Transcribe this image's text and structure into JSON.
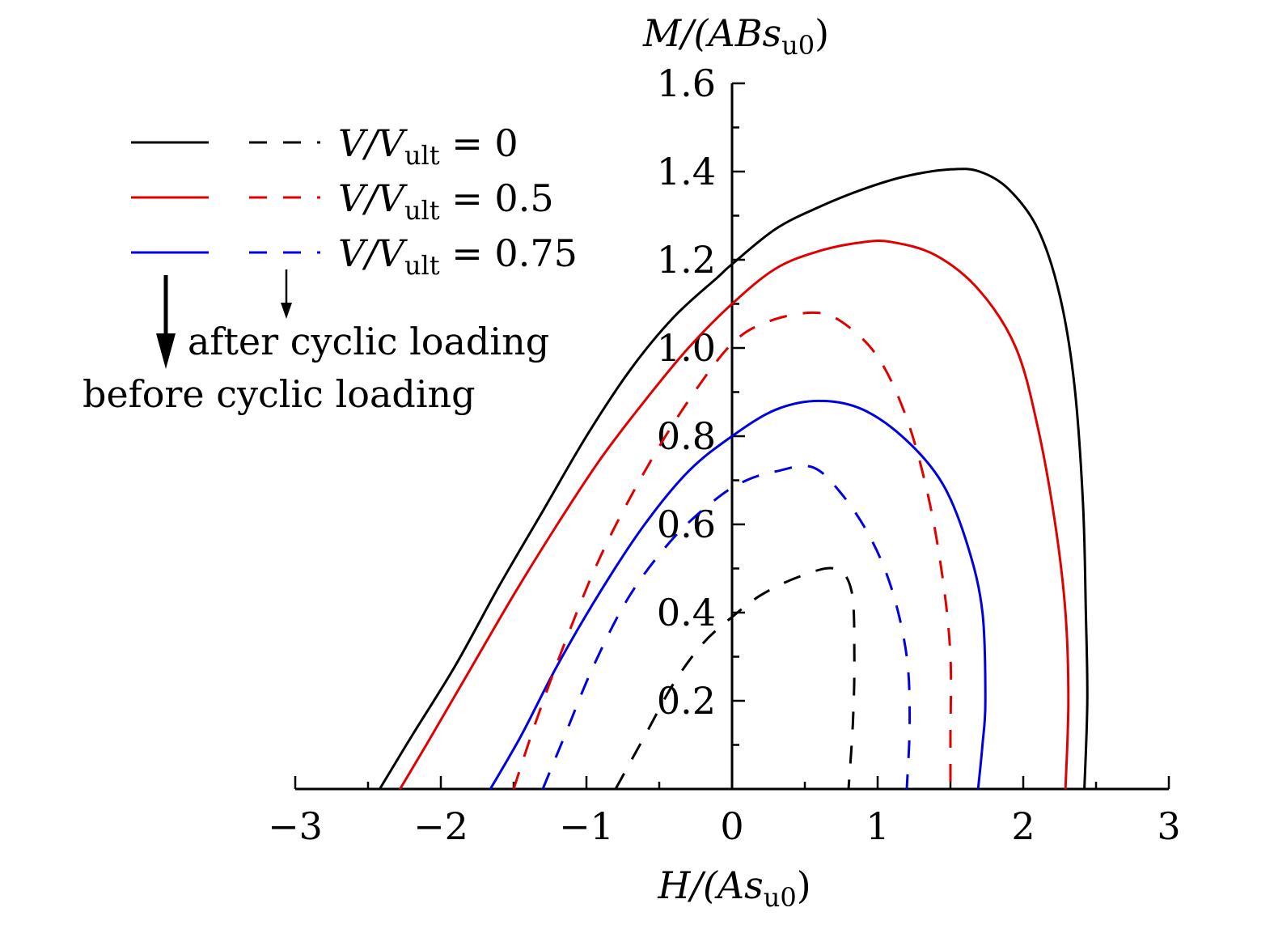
{
  "chart_data": {
    "type": "line",
    "xlabel": {
      "main": "H/(As",
      "sub": "u0",
      "end": ")"
    },
    "ylabel": {
      "main": "M/(ABs",
      "sub": "u0",
      "end": ")"
    },
    "xlim": [
      -3,
      3
    ],
    "ylim": [
      0,
      1.6
    ],
    "x_ticks": [
      "−3",
      "−2",
      "−1",
      "0",
      "1",
      "2",
      "3"
    ],
    "y_ticks": [
      "0.2",
      "0.4",
      "0.6",
      "0.8",
      "1.0",
      "1.2",
      "1.4",
      "1.6"
    ],
    "legend": {
      "placement": "top-left",
      "entries": [
        {
          "prefix": "V/V",
          "sub": "ult",
          "value": " = 0",
          "color": "#000000"
        },
        {
          "prefix": "V/V",
          "sub": "ult",
          "value": " = 0.5",
          "color": "#e00000"
        },
        {
          "prefix": "V/V",
          "sub": "ult",
          "value": " = 0.75",
          "color": "#0000e0"
        }
      ]
    },
    "annotations": {
      "after": "after cyclic loading",
      "before": "before cyclic loading"
    },
    "series": [
      {
        "legend_index": 0,
        "style": "solid",
        "color": "#000000",
        "points": [
          [
            -2.42,
            0
          ],
          [
            -2.2,
            0.12
          ],
          [
            -1.9,
            0.28
          ],
          [
            -1.6,
            0.46
          ],
          [
            -1.3,
            0.63
          ],
          [
            -1.0,
            0.8
          ],
          [
            -0.7,
            0.95
          ],
          [
            -0.4,
            1.07
          ],
          [
            -0.1,
            1.16
          ],
          [
            0,
            1.19
          ],
          [
            0.3,
            1.27
          ],
          [
            0.6,
            1.32
          ],
          [
            0.9,
            1.36
          ],
          [
            1.2,
            1.39
          ],
          [
            1.5,
            1.405
          ],
          [
            1.7,
            1.4
          ],
          [
            1.9,
            1.36
          ],
          [
            2.1,
            1.27
          ],
          [
            2.25,
            1.12
          ],
          [
            2.35,
            0.92
          ],
          [
            2.41,
            0.65
          ],
          [
            2.43,
            0.4
          ],
          [
            2.44,
            0.2
          ],
          [
            2.42,
            0
          ]
        ]
      },
      {
        "legend_index": 1,
        "style": "solid",
        "color": "#e00000",
        "points": [
          [
            -2.28,
            0
          ],
          [
            -2.1,
            0.1
          ],
          [
            -1.8,
            0.27
          ],
          [
            -1.5,
            0.44
          ],
          [
            -1.2,
            0.6
          ],
          [
            -0.9,
            0.75
          ],
          [
            -0.6,
            0.88
          ],
          [
            -0.3,
            1.0
          ],
          [
            0,
            1.1
          ],
          [
            0.3,
            1.18
          ],
          [
            0.6,
            1.22
          ],
          [
            0.9,
            1.24
          ],
          [
            1.1,
            1.24
          ],
          [
            1.4,
            1.21
          ],
          [
            1.7,
            1.13
          ],
          [
            1.95,
            1.0
          ],
          [
            2.1,
            0.82
          ],
          [
            2.22,
            0.6
          ],
          [
            2.29,
            0.4
          ],
          [
            2.31,
            0.2
          ],
          [
            2.29,
            0
          ]
        ]
      },
      {
        "legend_index": 2,
        "style": "solid",
        "color": "#0000e0",
        "points": [
          [
            -1.66,
            0
          ],
          [
            -1.45,
            0.12
          ],
          [
            -1.2,
            0.28
          ],
          [
            -0.9,
            0.45
          ],
          [
            -0.6,
            0.6
          ],
          [
            -0.3,
            0.72
          ],
          [
            0,
            0.8
          ],
          [
            0.3,
            0.86
          ],
          [
            0.6,
            0.88
          ],
          [
            0.9,
            0.86
          ],
          [
            1.2,
            0.79
          ],
          [
            1.45,
            0.69
          ],
          [
            1.62,
            0.55
          ],
          [
            1.72,
            0.4
          ],
          [
            1.74,
            0.2
          ],
          [
            1.72,
            0.1
          ],
          [
            1.69,
            0
          ]
        ]
      },
      {
        "legend_index": 0,
        "style": "dashed",
        "color": "#000000",
        "points": [
          [
            -0.8,
            0
          ],
          [
            -0.6,
            0.12
          ],
          [
            -0.4,
            0.24
          ],
          [
            -0.2,
            0.33
          ],
          [
            0,
            0.39
          ],
          [
            0.2,
            0.44
          ],
          [
            0.45,
            0.48
          ],
          [
            0.7,
            0.5
          ],
          [
            0.82,
            0.45
          ],
          [
            0.84,
            0.3
          ],
          [
            0.83,
            0.15
          ],
          [
            0.8,
            0
          ]
        ]
      },
      {
        "legend_index": 1,
        "style": "dashed",
        "color": "#e00000",
        "points": [
          [
            -1.5,
            0
          ],
          [
            -1.35,
            0.15
          ],
          [
            -1.15,
            0.33
          ],
          [
            -0.9,
            0.53
          ],
          [
            -0.6,
            0.72
          ],
          [
            -0.3,
            0.88
          ],
          [
            0,
            1.01
          ],
          [
            0.25,
            1.06
          ],
          [
            0.55,
            1.08
          ],
          [
            0.75,
            1.06
          ],
          [
            1.0,
            0.98
          ],
          [
            1.2,
            0.84
          ],
          [
            1.35,
            0.66
          ],
          [
            1.45,
            0.47
          ],
          [
            1.5,
            0.3
          ],
          [
            1.5,
            0.12
          ],
          [
            1.5,
            0
          ]
        ]
      },
      {
        "legend_index": 2,
        "style": "dashed",
        "color": "#0000e0",
        "points": [
          [
            -1.3,
            0
          ],
          [
            -1.15,
            0.12
          ],
          [
            -0.95,
            0.28
          ],
          [
            -0.7,
            0.44
          ],
          [
            -0.4,
            0.57
          ],
          [
            -0.1,
            0.66
          ],
          [
            0.1,
            0.7
          ],
          [
            0.3,
            0.72
          ],
          [
            0.55,
            0.73
          ],
          [
            0.75,
            0.67
          ],
          [
            0.95,
            0.57
          ],
          [
            1.1,
            0.45
          ],
          [
            1.2,
            0.3
          ],
          [
            1.22,
            0.15
          ],
          [
            1.2,
            0
          ]
        ]
      }
    ],
    "arrows": [
      {
        "label_ref": "before",
        "weight": "thick"
      },
      {
        "label_ref": "after",
        "weight": "thin"
      }
    ]
  }
}
